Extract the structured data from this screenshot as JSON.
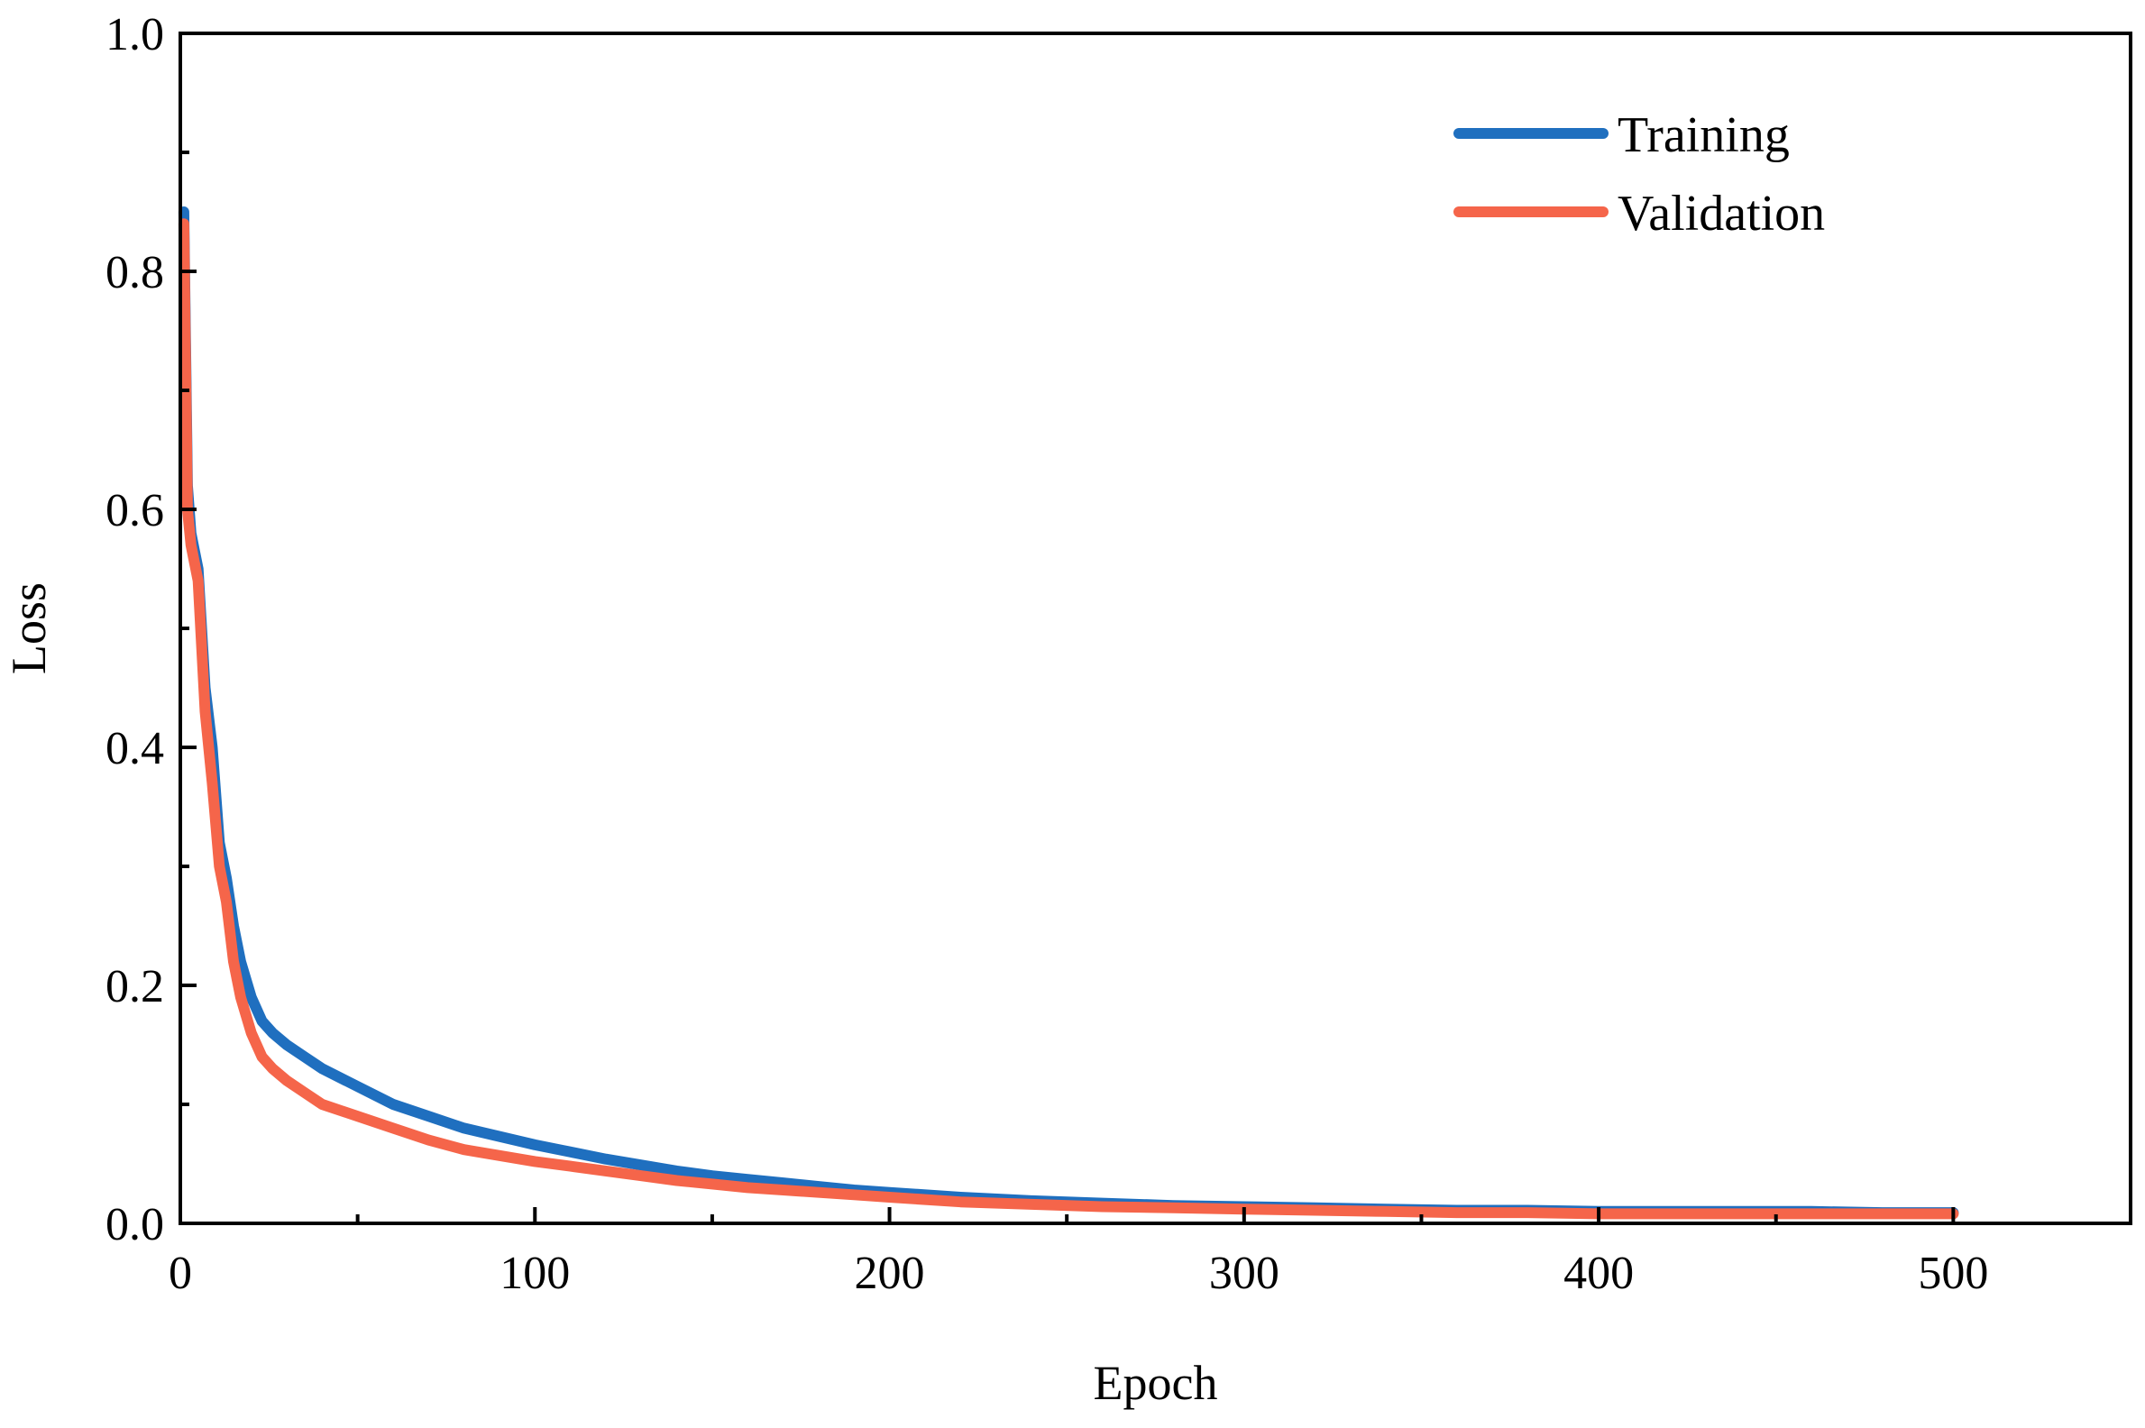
{
  "chart_data": {
    "type": "line",
    "title": "",
    "xlabel": "Epoch",
    "ylabel": "Loss",
    "xlim": [
      0,
      550
    ],
    "ylim": [
      0.0,
      1.0
    ],
    "x_ticks": [
      "0",
      "100",
      "200",
      "300",
      "400",
      "500"
    ],
    "y_ticks": [
      "0.0",
      "0.2",
      "0.4",
      "0.6",
      "0.8",
      "1.0"
    ],
    "grid": false,
    "legend_position": "top-right",
    "series": [
      {
        "name": "Training",
        "color": "#1f6fbf",
        "x": [
          1,
          2,
          3,
          5,
          7,
          9,
          11,
          13,
          15,
          17,
          20,
          23,
          26,
          30,
          35,
          40,
          50,
          60,
          70,
          80,
          90,
          100,
          110,
          120,
          130,
          140,
          150,
          160,
          170,
          180,
          190,
          200,
          220,
          240,
          260,
          280,
          300,
          320,
          340,
          360,
          380,
          400,
          420,
          440,
          460,
          480,
          500
        ],
        "y": [
          0.85,
          0.62,
          0.58,
          0.55,
          0.45,
          0.4,
          0.32,
          0.29,
          0.25,
          0.22,
          0.19,
          0.17,
          0.16,
          0.15,
          0.14,
          0.13,
          0.115,
          0.1,
          0.09,
          0.08,
          0.073,
          0.066,
          0.06,
          0.054,
          0.049,
          0.044,
          0.04,
          0.037,
          0.034,
          0.031,
          0.028,
          0.026,
          0.022,
          0.019,
          0.017,
          0.015,
          0.014,
          0.013,
          0.012,
          0.011,
          0.011,
          0.01,
          0.01,
          0.01,
          0.01,
          0.009,
          0.009
        ]
      },
      {
        "name": "Validation",
        "color": "#f5654a",
        "x": [
          1,
          2,
          3,
          5,
          7,
          9,
          11,
          13,
          15,
          17,
          20,
          23,
          26,
          30,
          35,
          40,
          50,
          60,
          70,
          80,
          90,
          100,
          110,
          120,
          130,
          140,
          150,
          160,
          170,
          180,
          190,
          200,
          220,
          240,
          260,
          280,
          300,
          320,
          340,
          360,
          380,
          400,
          420,
          440,
          460,
          480,
          500
        ],
        "y": [
          0.84,
          0.6,
          0.57,
          0.54,
          0.43,
          0.37,
          0.3,
          0.27,
          0.22,
          0.19,
          0.16,
          0.14,
          0.13,
          0.12,
          0.11,
          0.1,
          0.09,
          0.08,
          0.07,
          0.062,
          0.057,
          0.052,
          0.048,
          0.044,
          0.04,
          0.036,
          0.033,
          0.03,
          0.028,
          0.026,
          0.024,
          0.022,
          0.018,
          0.016,
          0.014,
          0.013,
          0.012,
          0.011,
          0.01,
          0.009,
          0.009,
          0.008,
          0.008,
          0.008,
          0.008,
          0.008,
          0.008
        ]
      }
    ]
  }
}
